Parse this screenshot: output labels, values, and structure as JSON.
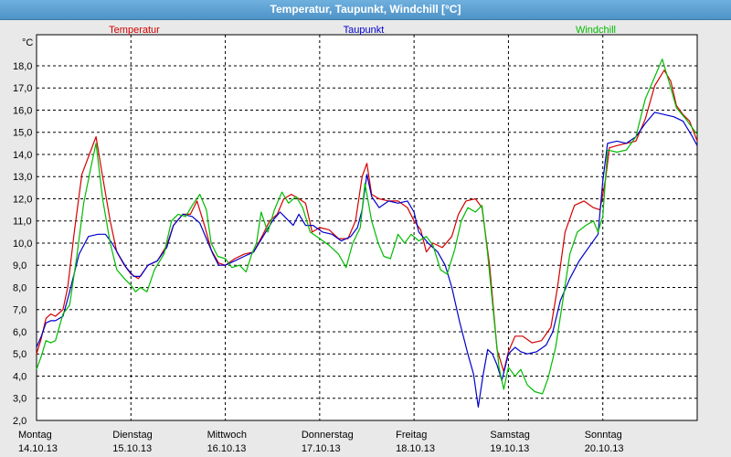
{
  "window": {
    "title": "Temperatur, Taupunkt, Windchill [°C]"
  },
  "chart_data": {
    "type": "line",
    "title": "Temperatur, Taupunkt, Windchill [°C]",
    "ylabel": "°C",
    "ylim": [
      2.0,
      19.4
    ],
    "yticks": [
      "2,0",
      "3,0",
      "4,0",
      "5,0",
      "6,0",
      "7,0",
      "8,0",
      "9,0",
      "10,0",
      "11,0",
      "12,0",
      "13,0",
      "14,0",
      "15,0",
      "16,0",
      "17,0",
      "18,0"
    ],
    "xlim": [
      0,
      7
    ],
    "xticks": [
      {
        "day": "Montag",
        "date": "14.10.13"
      },
      {
        "day": "Dienstag",
        "date": "15.10.13"
      },
      {
        "day": "Mittwoch",
        "date": "16.10.13"
      },
      {
        "day": "Donnerstag",
        "date": "17.10.13"
      },
      {
        "day": "Freitag",
        "date": "18.10.13"
      },
      {
        "day": "Samstag",
        "date": "19.10.13"
      },
      {
        "day": "Sonntag",
        "date": "20.10.13"
      }
    ],
    "grid": true,
    "legend_position": "top",
    "series": [
      {
        "name": "Temperatur",
        "color": "#d40000",
        "points": [
          [
            0,
            5.0
          ],
          [
            0.05,
            5.7
          ],
          [
            0.1,
            6.6
          ],
          [
            0.15,
            6.8
          ],
          [
            0.2,
            6.7
          ],
          [
            0.28,
            7.0
          ],
          [
            0.33,
            8.0
          ],
          [
            0.4,
            10.5
          ],
          [
            0.48,
            13.1
          ],
          [
            0.56,
            14.0
          ],
          [
            0.63,
            14.8
          ],
          [
            0.7,
            13.0
          ],
          [
            0.78,
            11.0
          ],
          [
            0.85,
            9.6
          ],
          [
            0.93,
            9.0
          ],
          [
            1.0,
            8.6
          ],
          [
            1.08,
            8.4
          ],
          [
            1.18,
            9.0
          ],
          [
            1.28,
            9.2
          ],
          [
            1.38,
            9.9
          ],
          [
            1.45,
            10.8
          ],
          [
            1.55,
            11.3
          ],
          [
            1.63,
            11.3
          ],
          [
            1.7,
            11.9
          ],
          [
            1.78,
            10.8
          ],
          [
            1.85,
            9.7
          ],
          [
            1.93,
            9.1
          ],
          [
            2.0,
            9.0
          ],
          [
            2.1,
            9.3
          ],
          [
            2.2,
            9.5
          ],
          [
            2.3,
            9.6
          ],
          [
            2.4,
            10.4
          ],
          [
            2.47,
            11.0
          ],
          [
            2.55,
            11.3
          ],
          [
            2.62,
            12.0
          ],
          [
            2.7,
            12.2
          ],
          [
            2.78,
            12.0
          ],
          [
            2.85,
            11.8
          ],
          [
            2.92,
            10.5
          ],
          [
            3.0,
            10.7
          ],
          [
            3.1,
            10.6
          ],
          [
            3.2,
            10.2
          ],
          [
            3.3,
            10.2
          ],
          [
            3.38,
            11.0
          ],
          [
            3.45,
            13.0
          ],
          [
            3.5,
            13.6
          ],
          [
            3.55,
            12.2
          ],
          [
            3.63,
            12.0
          ],
          [
            3.73,
            11.9
          ],
          [
            3.83,
            11.9
          ],
          [
            3.93,
            11.6
          ],
          [
            4.0,
            11.0
          ],
          [
            4.07,
            10.6
          ],
          [
            4.13,
            9.6
          ],
          [
            4.2,
            10.0
          ],
          [
            4.3,
            9.8
          ],
          [
            4.4,
            10.3
          ],
          [
            4.47,
            11.3
          ],
          [
            4.55,
            11.9
          ],
          [
            4.65,
            12.0
          ],
          [
            4.72,
            11.6
          ],
          [
            4.8,
            9.0
          ],
          [
            4.88,
            5.2
          ],
          [
            4.95,
            4.2
          ],
          [
            5.0,
            5.1
          ],
          [
            5.07,
            5.8
          ],
          [
            5.15,
            5.8
          ],
          [
            5.25,
            5.5
          ],
          [
            5.35,
            5.6
          ],
          [
            5.45,
            6.2
          ],
          [
            5.52,
            8.0
          ],
          [
            5.6,
            10.5
          ],
          [
            5.7,
            11.7
          ],
          [
            5.8,
            11.9
          ],
          [
            5.9,
            11.6
          ],
          [
            5.97,
            11.5
          ],
          [
            6.03,
            12.9
          ],
          [
            6.07,
            14.3
          ],
          [
            6.15,
            14.4
          ],
          [
            6.25,
            14.5
          ],
          [
            6.35,
            14.6
          ],
          [
            6.45,
            15.6
          ],
          [
            6.55,
            17.1
          ],
          [
            6.65,
            17.8
          ],
          [
            6.72,
            17.3
          ],
          [
            6.78,
            16.2
          ],
          [
            6.85,
            15.8
          ],
          [
            6.92,
            15.5
          ],
          [
            7.0,
            14.6
          ]
        ]
      },
      {
        "name": "Taupunkt",
        "color": "#0000cc",
        "points": [
          [
            0,
            5.3
          ],
          [
            0.05,
            5.8
          ],
          [
            0.1,
            6.4
          ],
          [
            0.15,
            6.5
          ],
          [
            0.2,
            6.5
          ],
          [
            0.28,
            6.7
          ],
          [
            0.35,
            7.8
          ],
          [
            0.45,
            9.5
          ],
          [
            0.55,
            10.3
          ],
          [
            0.65,
            10.4
          ],
          [
            0.73,
            10.4
          ],
          [
            0.8,
            10.0
          ],
          [
            0.88,
            9.4
          ],
          [
            0.95,
            8.9
          ],
          [
            1.03,
            8.5
          ],
          [
            1.1,
            8.5
          ],
          [
            1.18,
            9.0
          ],
          [
            1.28,
            9.2
          ],
          [
            1.38,
            9.8
          ],
          [
            1.45,
            10.8
          ],
          [
            1.55,
            11.3
          ],
          [
            1.65,
            11.2
          ],
          [
            1.73,
            10.9
          ],
          [
            1.8,
            10.2
          ],
          [
            1.87,
            9.5
          ],
          [
            1.93,
            9.0
          ],
          [
            2.0,
            9.0
          ],
          [
            2.1,
            9.2
          ],
          [
            2.2,
            9.4
          ],
          [
            2.3,
            9.6
          ],
          [
            2.4,
            10.3
          ],
          [
            2.5,
            11.0
          ],
          [
            2.58,
            11.4
          ],
          [
            2.65,
            11.1
          ],
          [
            2.72,
            10.8
          ],
          [
            2.78,
            11.3
          ],
          [
            2.85,
            10.8
          ],
          [
            2.93,
            10.8
          ],
          [
            3.03,
            10.5
          ],
          [
            3.13,
            10.4
          ],
          [
            3.23,
            10.1
          ],
          [
            3.33,
            10.3
          ],
          [
            3.4,
            10.7
          ],
          [
            3.45,
            11.5
          ],
          [
            3.5,
            13.1
          ],
          [
            3.55,
            12.1
          ],
          [
            3.63,
            11.6
          ],
          [
            3.73,
            11.9
          ],
          [
            3.83,
            11.8
          ],
          [
            3.93,
            11.9
          ],
          [
            4.0,
            11.4
          ],
          [
            4.05,
            10.5
          ],
          [
            4.15,
            10.0
          ],
          [
            4.25,
            9.6
          ],
          [
            4.33,
            9.0
          ],
          [
            4.4,
            8.0
          ],
          [
            4.48,
            6.5
          ],
          [
            4.57,
            5.0
          ],
          [
            4.63,
            4.1
          ],
          [
            4.68,
            2.6
          ],
          [
            4.73,
            4.0
          ],
          [
            4.78,
            5.2
          ],
          [
            4.83,
            5.0
          ],
          [
            4.88,
            4.5
          ],
          [
            4.93,
            3.8
          ],
          [
            5.0,
            5.0
          ],
          [
            5.07,
            5.3
          ],
          [
            5.13,
            5.1
          ],
          [
            5.2,
            5.0
          ],
          [
            5.3,
            5.1
          ],
          [
            5.4,
            5.4
          ],
          [
            5.47,
            6.0
          ],
          [
            5.55,
            7.4
          ],
          [
            5.65,
            8.4
          ],
          [
            5.75,
            9.2
          ],
          [
            5.85,
            9.8
          ],
          [
            5.95,
            10.4
          ],
          [
            6.0,
            12.8
          ],
          [
            6.05,
            14.5
          ],
          [
            6.15,
            14.6
          ],
          [
            6.25,
            14.5
          ],
          [
            6.35,
            14.8
          ],
          [
            6.45,
            15.4
          ],
          [
            6.55,
            15.9
          ],
          [
            6.65,
            15.8
          ],
          [
            6.75,
            15.7
          ],
          [
            6.85,
            15.5
          ],
          [
            6.95,
            14.8
          ],
          [
            7.0,
            14.4
          ]
        ]
      },
      {
        "name": "Windchill",
        "color": "#00bb00",
        "points": [
          [
            0,
            4.3
          ],
          [
            0.05,
            4.9
          ],
          [
            0.1,
            5.6
          ],
          [
            0.15,
            5.5
          ],
          [
            0.2,
            5.6
          ],
          [
            0.28,
            6.8
          ],
          [
            0.35,
            7.2
          ],
          [
            0.43,
            9.5
          ],
          [
            0.5,
            11.8
          ],
          [
            0.58,
            13.5
          ],
          [
            0.63,
            14.5
          ],
          [
            0.7,
            12.0
          ],
          [
            0.78,
            10.0
          ],
          [
            0.85,
            8.8
          ],
          [
            0.93,
            8.4
          ],
          [
            1.0,
            8.1
          ],
          [
            1.05,
            7.8
          ],
          [
            1.1,
            8.0
          ],
          [
            1.17,
            7.8
          ],
          [
            1.25,
            8.8
          ],
          [
            1.35,
            9.5
          ],
          [
            1.43,
            11.0
          ],
          [
            1.5,
            11.3
          ],
          [
            1.58,
            11.2
          ],
          [
            1.65,
            11.7
          ],
          [
            1.73,
            12.2
          ],
          [
            1.8,
            11.5
          ],
          [
            1.85,
            10.0
          ],
          [
            1.92,
            9.4
          ],
          [
            2.0,
            9.3
          ],
          [
            2.07,
            8.9
          ],
          [
            2.15,
            9.0
          ],
          [
            2.22,
            8.7
          ],
          [
            2.28,
            9.5
          ],
          [
            2.33,
            10.0
          ],
          [
            2.38,
            11.4
          ],
          [
            2.45,
            10.5
          ],
          [
            2.52,
            11.5
          ],
          [
            2.6,
            12.3
          ],
          [
            2.67,
            11.8
          ],
          [
            2.75,
            12.1
          ],
          [
            2.82,
            11.6
          ],
          [
            2.9,
            10.5
          ],
          [
            3.0,
            10.2
          ],
          [
            3.1,
            9.9
          ],
          [
            3.2,
            9.5
          ],
          [
            3.28,
            8.9
          ],
          [
            3.35,
            10.0
          ],
          [
            3.43,
            10.7
          ],
          [
            3.48,
            12.7
          ],
          [
            3.55,
            11.0
          ],
          [
            3.62,
            10.0
          ],
          [
            3.68,
            9.4
          ],
          [
            3.75,
            9.3
          ],
          [
            3.83,
            10.4
          ],
          [
            3.9,
            10.0
          ],
          [
            3.97,
            10.4
          ],
          [
            4.05,
            10.1
          ],
          [
            4.13,
            10.3
          ],
          [
            4.2,
            9.9
          ],
          [
            4.28,
            8.8
          ],
          [
            4.35,
            8.6
          ],
          [
            4.43,
            9.7
          ],
          [
            4.5,
            11.0
          ],
          [
            4.57,
            11.6
          ],
          [
            4.65,
            11.4
          ],
          [
            4.72,
            11.7
          ],
          [
            4.78,
            9.5
          ],
          [
            4.85,
            6.5
          ],
          [
            4.9,
            4.4
          ],
          [
            4.95,
            3.4
          ],
          [
            5.0,
            4.4
          ],
          [
            5.07,
            4.0
          ],
          [
            5.13,
            4.3
          ],
          [
            5.2,
            3.6
          ],
          [
            5.28,
            3.3
          ],
          [
            5.36,
            3.2
          ],
          [
            5.42,
            3.9
          ],
          [
            5.5,
            5.3
          ],
          [
            5.58,
            7.5
          ],
          [
            5.65,
            9.5
          ],
          [
            5.73,
            10.5
          ],
          [
            5.82,
            10.8
          ],
          [
            5.9,
            11.0
          ],
          [
            5.95,
            10.5
          ],
          [
            6.0,
            11.2
          ],
          [
            6.05,
            14.2
          ],
          [
            6.15,
            14.1
          ],
          [
            6.25,
            14.2
          ],
          [
            6.35,
            14.8
          ],
          [
            6.45,
            16.5
          ],
          [
            6.55,
            17.5
          ],
          [
            6.63,
            18.3
          ],
          [
            6.7,
            17.3
          ],
          [
            6.78,
            16.1
          ],
          [
            6.88,
            15.6
          ],
          [
            7.0,
            14.9
          ]
        ]
      }
    ]
  }
}
